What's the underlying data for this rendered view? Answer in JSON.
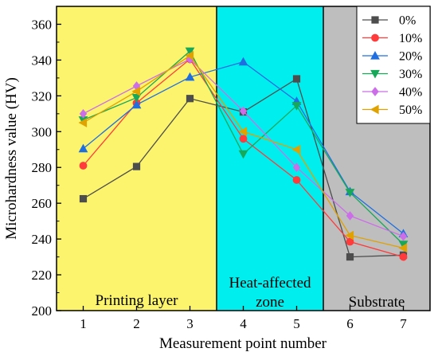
{
  "chart_data": {
    "type": "line",
    "xlabel": "Measurement point number",
    "ylabel": "Microhardness value (HV)",
    "xlim": [
      0.5,
      7.5
    ],
    "ylim": [
      200,
      370
    ],
    "x_ticks": [
      1,
      2,
      3,
      4,
      5,
      6,
      7
    ],
    "y_ticks": [
      200,
      220,
      240,
      260,
      280,
      300,
      320,
      340,
      360
    ],
    "grid": false,
    "legend_position": "top-right",
    "x": [
      1,
      2,
      3,
      4,
      5,
      6,
      7
    ],
    "regions": [
      {
        "label": "Printing layer",
        "x_from": 0.5,
        "x_to": 3.5,
        "color": "#fcf46c"
      },
      {
        "label": "Heat-affected zone",
        "x_from": 3.5,
        "x_to": 5.5,
        "color": "#00eeee"
      },
      {
        "label": "Substrate",
        "x_from": 5.5,
        "x_to": 7.5,
        "color": "#bebebe"
      }
    ],
    "series": [
      {
        "name": "0%",
        "color": "#4d4d4d",
        "marker": "square",
        "values": [
          262.5,
          280.5,
          318.5,
          311,
          329.5,
          230,
          231
        ]
      },
      {
        "name": "10%",
        "color": "#ff3b3b",
        "marker": "circle",
        "values": [
          281,
          316,
          340.5,
          296,
          273,
          238.5,
          230
        ]
      },
      {
        "name": "20%",
        "color": "#1f6fe0",
        "marker": "triangle-up",
        "values": [
          290.5,
          315,
          330.5,
          339,
          317,
          266.5,
          243
        ]
      },
      {
        "name": "30%",
        "color": "#17a85a",
        "marker": "triangle-down",
        "values": [
          306.5,
          319,
          345,
          287.5,
          314.5,
          266,
          237
        ]
      },
      {
        "name": "40%",
        "color": "#cc6ee8",
        "marker": "diamond",
        "values": [
          310,
          325.5,
          340.5,
          311.5,
          280,
          253,
          241.5
        ]
      },
      {
        "name": "50%",
        "color": "#e0a200",
        "marker": "triangle-left",
        "values": [
          305,
          322.5,
          342.5,
          300,
          290,
          242,
          235
        ]
      }
    ]
  }
}
